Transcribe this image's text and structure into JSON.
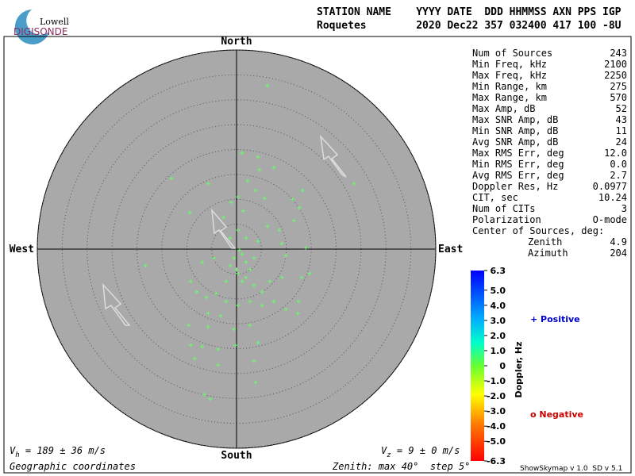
{
  "header": {
    "logo_top": "Lowell",
    "logo_bottom": "DIGISONDE",
    "line1": "STATION NAME    YYYY DATE  DDD HHMMSS AXN PPS IGP",
    "line2": "Roquetes        2020 Dec22 357 032400 417 100 -8U"
  },
  "table": {
    "rows": [
      [
        "Num of Sources",
        "243"
      ],
      [
        "Min Freq, kHz",
        "2100"
      ],
      [
        "Max Freq, kHz",
        "2250"
      ],
      [
        "Min Range, km",
        "275"
      ],
      [
        "Max Range, km",
        "570"
      ],
      [
        "Max Amp, dB",
        "52"
      ],
      [
        "Max SNR Amp, dB",
        "43"
      ],
      [
        "Min SNR Amp, dB",
        "11"
      ],
      [
        "Avg SNR Amp, dB",
        "24"
      ],
      [
        "Max RMS Err, deg",
        "12.0"
      ],
      [
        "Min RMS Err, deg",
        "0.0"
      ],
      [
        "Avg RMS Err, deg",
        "2.7"
      ],
      [
        "Doppler Res, Hz",
        "0.0977"
      ],
      [
        "CIT, sec",
        "10.24"
      ],
      [
        "Num of CITs",
        "3"
      ],
      [
        "Polarization",
        "O-mode"
      ]
    ],
    "center_title": "Center of Sources, deg:",
    "center_rows": [
      [
        "Zenith",
        "4.9"
      ],
      [
        "Azimuth",
        "204"
      ]
    ]
  },
  "chart_data": {
    "type": "skymap",
    "directions": {
      "north": "North",
      "south": "South",
      "east": "East",
      "west": "West"
    },
    "zlim": [
      0,
      40
    ],
    "zticks": [
      5,
      10,
      15,
      20,
      25,
      30,
      35,
      40
    ],
    "series": [
      {
        "color": "#66ff66",
        "x": [
          6.2,
          -13.1,
          -5.7,
          1.1,
          4.3,
          4.6,
          7.5,
          2.2,
          3.8,
          0.3,
          -1.1,
          -9.4,
          -2.6,
          5.6,
          11.3,
          13.2,
          23.6,
          12.6,
          11.5,
          8.6,
          6.2,
          1.3,
          0.3,
          -1.3,
          1.9,
          4.3,
          0.6,
          -0.5,
          1.9,
          -1.3,
          0.3,
          2.7,
          -2.1,
          1.1,
          3.5,
          5.1,
          6.7,
          9.1,
          -4.5,
          -6.9,
          -9.2,
          -8.0,
          -6.1,
          -4.1,
          -2.1,
          0.3,
          2.7,
          5.1,
          7.5,
          9.9,
          12.3,
          13.1,
          14.7,
          9.9,
          9.1,
          -18.3,
          13.9,
          -5.7,
          -3.2,
          -9.6,
          -5.7,
          -0.5,
          2.7,
          -9.2,
          -6.9,
          -3.7,
          -0.2,
          4.3,
          3.5,
          -8.4,
          -3.7,
          3.8,
          -6.5,
          -5.3,
          12.4,
          1.1,
          0.0,
          1.9,
          3.5
        ],
        "y": [
          32.8,
          14.2,
          13.1,
          19.3,
          18.5,
          15.9,
          16.4,
          13.7,
          11.8,
          10.5,
          9.4,
          7.3,
          6.4,
          10.2,
          10.0,
          11.8,
          13.1,
          8.3,
          5.7,
          3.8,
          4.6,
          7.7,
          3.8,
          2.2,
          2.2,
          1.6,
          -0.2,
          -1.8,
          -2.6,
          -3.3,
          -4.9,
          -4.1,
          -6.5,
          -6.5,
          -7.3,
          -8.6,
          -6.5,
          -5.7,
          -1.8,
          -2.6,
          -6.5,
          -8.6,
          -9.7,
          -8.9,
          -10.5,
          -11.3,
          -10.5,
          -11.3,
          -10.5,
          -12.1,
          -12.9,
          -5.7,
          -4.9,
          -1.3,
          1.1,
          -3.3,
          0.3,
          -12.9,
          -13.4,
          -15.3,
          -15.6,
          -16.1,
          -15.3,
          -19.3,
          -19.6,
          -20.1,
          -19.3,
          -18.8,
          -22.5,
          -22.0,
          -23.3,
          -26.8,
          -29.2,
          -30.1,
          -10.5,
          -1.0,
          -4.1,
          -5.7,
          -1.8
        ]
      }
    ],
    "colorbar": {
      "label": "Doppler, Hz",
      "lim": [
        -6.3,
        6.3
      ],
      "ticks": [
        6.3,
        {
          "value": 5,
          "label": "5.0"
        },
        {
          "value": 4,
          "label": "4.0"
        },
        {
          "value": 3,
          "label": "3.0"
        },
        {
          "value": 2,
          "label": "2.0"
        },
        {
          "value": 1,
          "label": "1.0"
        },
        0,
        {
          "value": -1,
          "label": "-1.0"
        },
        {
          "value": -2,
          "label": "-2.0"
        },
        {
          "value": -3,
          "label": "-3.0"
        },
        {
          "value": -4,
          "label": "-4.0"
        },
        {
          "value": -5,
          "label": "-5.0"
        },
        -6.3
      ]
    },
    "legend": {
      "positive": "+ Positive",
      "negative": "o Negative"
    },
    "vh": {
      "symbol": "V",
      "sub": "h",
      "text": " = 189 ± 36 m/s"
    },
    "vz": {
      "symbol": "V",
      "sub": "z",
      "text": " = 9 ± 0 m/s"
    },
    "coords": "Geographic coordinates",
    "zenith_note": "Zenith: max 40°  step 5°",
    "version": "ShowSkymap v 1.0  SD v 5.1"
  }
}
